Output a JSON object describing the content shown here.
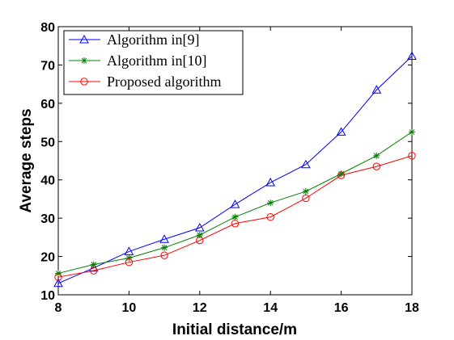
{
  "chart_data": {
    "type": "line",
    "xlabel": "Initial distance/m",
    "ylabel": "Average steps",
    "xlim": [
      8,
      18
    ],
    "ylim": [
      10,
      80
    ],
    "xticks": [
      8,
      10,
      12,
      14,
      16,
      18
    ],
    "yticks": [
      10,
      20,
      30,
      40,
      50,
      60,
      70,
      80
    ],
    "grid": false,
    "legend_position": "top-left",
    "x": [
      8,
      9,
      10,
      11,
      12,
      13,
      14,
      15,
      16,
      17,
      18
    ],
    "series": [
      {
        "name": "Algorithm in[9]",
        "color": "#0000ff",
        "marker": "triangle",
        "values": [
          13.0,
          17.0,
          21.3,
          24.5,
          27.5,
          33.6,
          39.3,
          44.0,
          52.5,
          63.5,
          72.3
        ]
      },
      {
        "name": "Algorithm in[10]",
        "color": "#008000",
        "marker": "star",
        "values": [
          15.6,
          17.9,
          19.6,
          22.3,
          25.6,
          30.3,
          34.0,
          37.0,
          41.6,
          46.3,
          52.5
        ]
      },
      {
        "name": "Proposed algorithm",
        "color": "#ff0000",
        "marker": "circle",
        "values": [
          14.6,
          16.3,
          18.5,
          20.3,
          24.2,
          28.6,
          30.3,
          35.2,
          41.2,
          43.5,
          46.3
        ]
      }
    ]
  }
}
